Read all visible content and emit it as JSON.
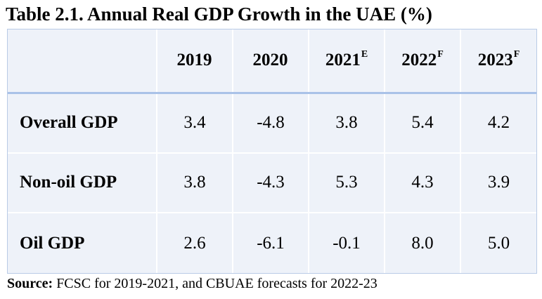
{
  "title": "Table 2.1. Annual Real GDP Growth in the UAE (%)",
  "table": {
    "header_corner": "",
    "columns": [
      {
        "year": "2019",
        "sup": ""
      },
      {
        "year": "2020",
        "sup": ""
      },
      {
        "year": "2021",
        "sup": "E"
      },
      {
        "year": "2022",
        "sup": "F"
      },
      {
        "year": "2023",
        "sup": "F"
      }
    ],
    "rows": [
      {
        "label": "Overall GDP",
        "values": [
          "3.4",
          "-4.8",
          "3.8",
          "5.4",
          "4.2"
        ]
      },
      {
        "label": "Non-oil GDP",
        "values": [
          "3.8",
          "-4.3",
          "5.3",
          "4.3",
          "3.9"
        ]
      },
      {
        "label": "Oil GDP",
        "values": [
          "2.6",
          "-6.1",
          "-0.1",
          "8.0",
          "5.0"
        ]
      }
    ]
  },
  "source": {
    "label": "Source:",
    "text": " FCSC for 2019-2021, and CBUAE forecasts for 2022-23"
  }
}
